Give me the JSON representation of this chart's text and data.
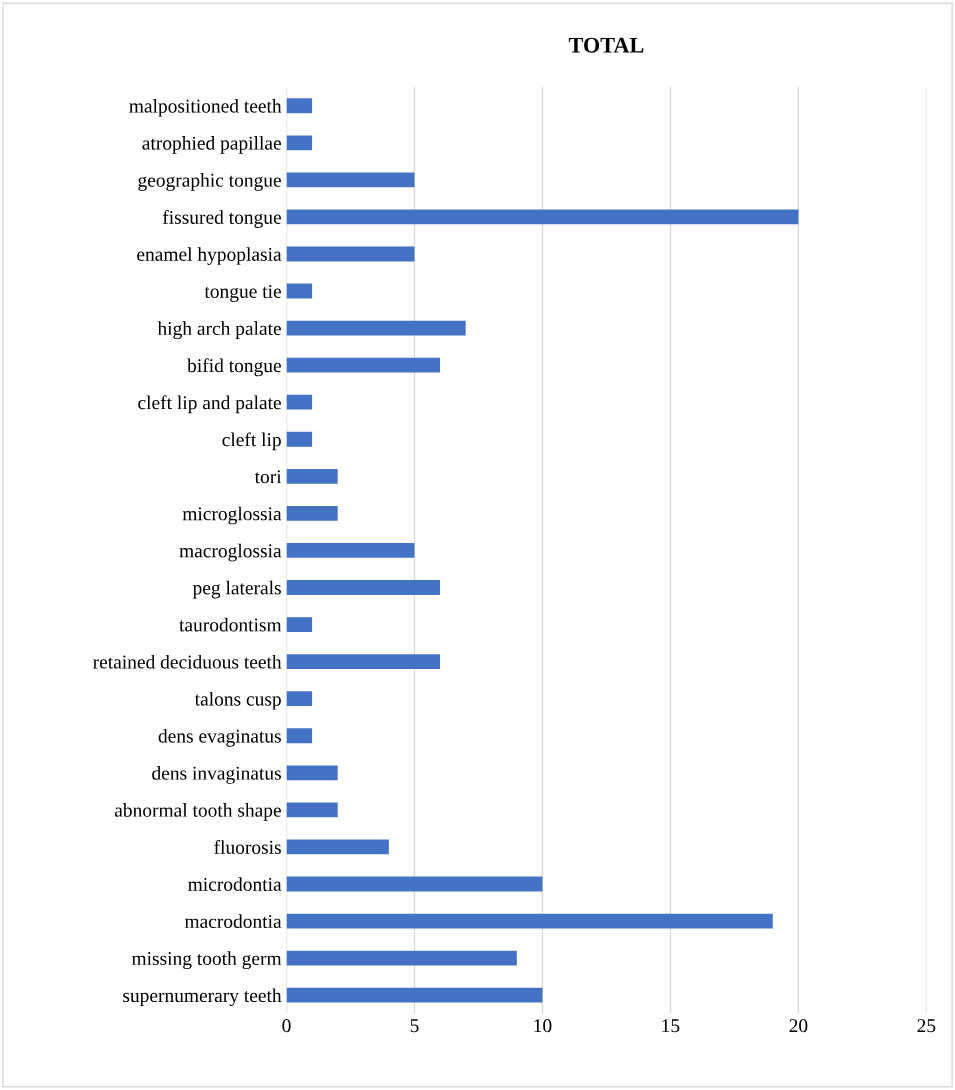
{
  "chart_data": {
    "type": "bar",
    "title": "TOTAL",
    "orientation": "horizontal",
    "categories": [
      "malpositioned teeth",
      "atrophied papillae",
      "geographic tongue",
      "fissured tongue",
      "enamel hypoplasia",
      "tongue tie",
      "high arch palate",
      "bifid tongue",
      "cleft lip and palate",
      "cleft lip",
      "tori",
      "microglossia",
      "macroglossia",
      "peg laterals",
      "taurodontism",
      "retained deciduous teeth",
      "talons cusp",
      "dens evaginatus",
      "dens invaginatus",
      "abnormal tooth shape",
      "fluorosis",
      "microdontia",
      "macrodontia",
      "missing tooth germ",
      "supernumerary teeth"
    ],
    "values": [
      1,
      1,
      5,
      20,
      5,
      1,
      7,
      6,
      1,
      1,
      2,
      2,
      5,
      6,
      1,
      6,
      1,
      1,
      2,
      2,
      4,
      10,
      19,
      9,
      10
    ],
    "color": "#4472c4",
    "xlim": [
      0,
      25
    ],
    "xticks": [
      0,
      5,
      10,
      15,
      20,
      25
    ],
    "grid": "x"
  }
}
